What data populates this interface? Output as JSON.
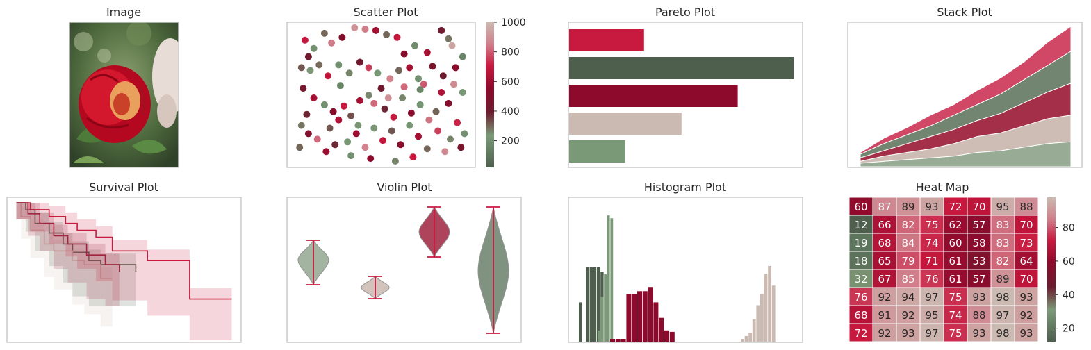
{
  "palette": {
    "dark_green": "#4e5f4e",
    "mid_green": "#6b7f6a",
    "sage": "#7a9a77",
    "sage_light": "#93a890",
    "crimson": "#c8193e",
    "wine": "#8e0a2c",
    "maroon": "#a0243f",
    "rose": "#cf3f5f",
    "pink": "#d07f8b",
    "taupe": "#cbbab1",
    "axes": "#cccccc"
  },
  "panels": {
    "image": {
      "title": "Image"
    },
    "scatter": {
      "title": "Scatter Plot"
    },
    "pareto": {
      "title": "Pareto Plot"
    },
    "stack": {
      "title": "Stack Plot"
    },
    "survival": {
      "title": "Survival Plot"
    },
    "violin": {
      "title": "Violin Plot"
    },
    "histogram": {
      "title": "Histogram Plot"
    },
    "heatmap": {
      "title": "Heat Map"
    }
  },
  "chart_data": [
    {
      "type": "scatter",
      "title": "Scatter Plot",
      "xlim": [
        0,
        100
      ],
      "ylim": [
        0,
        100
      ],
      "colorbar": {
        "ticks": [
          "200",
          "400",
          "600",
          "800",
          "1000"
        ],
        "range": [
          20,
          1000
        ]
      },
      "points": [
        [
          7,
          90,
          700
        ],
        [
          12,
          84,
          200
        ],
        [
          9,
          78,
          420
        ],
        [
          18,
          95,
          300
        ],
        [
          22,
          88,
          850
        ],
        [
          28,
          92,
          500
        ],
        [
          35,
          99,
          900
        ],
        [
          41,
          98,
          850
        ],
        [
          47,
          97,
          620
        ],
        [
          53,
          94,
          300
        ],
        [
          59,
          92,
          700
        ],
        [
          63,
          80,
          520
        ],
        [
          69,
          86,
          180
        ],
        [
          76,
          81,
          620
        ],
        [
          84,
          97,
          420
        ],
        [
          88,
          91,
          280
        ],
        [
          90,
          86,
          950
        ],
        [
          96,
          78,
          160
        ],
        [
          5,
          70,
          320
        ],
        [
          10,
          68,
          240
        ],
        [
          15,
          72,
          300
        ],
        [
          20,
          64,
          700
        ],
        [
          26,
          72,
          200
        ],
        [
          32,
          66,
          260
        ],
        [
          38,
          74,
          420
        ],
        [
          43,
          70,
          760
        ],
        [
          48,
          66,
          220
        ],
        [
          55,
          62,
          860
        ],
        [
          60,
          68,
          300
        ],
        [
          66,
          70,
          620
        ],
        [
          71,
          62,
          200
        ],
        [
          74,
          58,
          800
        ],
        [
          79,
          71,
          460
        ],
        [
          85,
          64,
          400
        ],
        [
          91,
          58,
          880
        ],
        [
          96,
          52,
          220
        ],
        [
          6,
          55,
          440
        ],
        [
          12,
          48,
          620
        ],
        [
          18,
          43,
          200
        ],
        [
          23,
          38,
          520
        ],
        [
          29,
          42,
          700
        ],
        [
          33,
          35,
          330
        ],
        [
          38,
          46,
          620
        ],
        [
          43,
          50,
          260
        ],
        [
          46,
          44,
          820
        ],
        [
          52,
          40,
          380
        ],
        [
          57,
          34,
          700
        ],
        [
          62,
          48,
          260
        ],
        [
          67,
          37,
          540
        ],
        [
          72,
          43,
          220
        ],
        [
          77,
          32,
          840
        ],
        [
          81,
          38,
          300
        ],
        [
          88,
          44,
          520
        ],
        [
          93,
          30,
          720
        ],
        [
          5,
          28,
          280
        ],
        [
          9,
          22,
          500
        ],
        [
          14,
          18,
          820
        ],
        [
          21,
          26,
          320
        ],
        [
          26,
          32,
          640
        ],
        [
          31,
          16,
          220
        ],
        [
          36,
          22,
          600
        ],
        [
          41,
          12,
          860
        ],
        [
          46,
          26,
          240
        ],
        [
          51,
          17,
          700
        ],
        [
          56,
          24,
          320
        ],
        [
          61,
          14,
          540
        ],
        [
          66,
          28,
          220
        ],
        [
          71,
          20,
          620
        ],
        [
          76,
          11,
          300
        ],
        [
          82,
          24,
          760
        ],
        [
          89,
          18,
          260
        ],
        [
          95,
          12,
          460
        ],
        [
          19,
          9,
          600
        ],
        [
          24,
          14,
          380
        ],
        [
          33,
          6,
          200
        ],
        [
          44,
          4,
          560
        ],
        [
          58,
          2,
          260
        ],
        [
          68,
          5,
          700
        ],
        [
          4,
          12,
          300
        ],
        [
          86,
          9,
          880
        ],
        [
          97,
          22,
          200
        ],
        [
          50,
          55,
          420
        ],
        [
          27,
          57,
          160
        ],
        [
          63,
          56,
          820
        ],
        [
          84,
          52,
          640
        ],
        [
          8,
          36,
          380
        ],
        [
          37,
          28,
          240
        ],
        [
          54,
          48,
          900
        ],
        [
          72,
          54,
          160
        ],
        [
          92,
          70,
          540
        ]
      ]
    },
    {
      "type": "bar",
      "title": "Pareto Plot",
      "orientation": "horizontal",
      "values": [
        32,
        96,
        72,
        48,
        24
      ],
      "xlim": [
        0,
        100
      ]
    },
    {
      "type": "area",
      "title": "Stack Plot",
      "x": [
        0,
        1,
        2,
        3,
        4,
        5,
        6,
        7,
        8,
        9
      ],
      "series": [
        {
          "values": [
            1,
            1.5,
            2,
            2.5,
            3,
            4,
            4.5,
            5.5,
            6.5,
            7
          ]
        },
        {
          "values": [
            0.5,
            1.5,
            2,
            2.5,
            3.5,
            4.5,
            5,
            6,
            7,
            7.5
          ]
        },
        {
          "values": [
            1,
            1.5,
            2.5,
            3.5,
            4,
            4.5,
            5.5,
            6.5,
            7.5,
            9
          ]
        },
        {
          "values": [
            1,
            2,
            2.5,
            3,
            4,
            4.5,
            5.5,
            6.5,
            7.5,
            9
          ]
        },
        {
          "values": [
            0.5,
            1.5,
            2,
            3,
            3,
            4,
            4.5,
            5,
            6.5,
            7
          ]
        }
      ]
    },
    {
      "type": "line",
      "title": "Survival Plot",
      "xlim": [
        0,
        100
      ],
      "ylim": [
        0,
        1
      ],
      "series": [
        {
          "values": [
            [
              4,
              1
            ],
            [
              8,
              0.95
            ],
            [
              12,
              0.85
            ],
            [
              18,
              0.78
            ],
            [
              24,
              0.7
            ],
            [
              28,
              0.64
            ],
            [
              35,
              0.58
            ],
            [
              40,
              0.55
            ],
            [
              55,
              0.5
            ]
          ],
          "band": [
            0.25,
            0.95
          ]
        },
        {
          "values": [
            [
              4,
              1
            ],
            [
              6,
              0.9
            ],
            [
              10,
              0.8
            ],
            [
              16,
              0.7
            ],
            [
              20,
              0.65
            ],
            [
              28,
              0.58
            ],
            [
              33,
              0.55
            ],
            [
              40,
              0.45
            ],
            [
              45,
              0.45
            ]
          ],
          "band": [
            0.1,
            0.9
          ]
        },
        {
          "values": [
            [
              4,
              1
            ],
            [
              10,
              0.95
            ],
            [
              18,
              0.9
            ],
            [
              25,
              0.85
            ],
            [
              30,
              0.8
            ],
            [
              38,
              0.75
            ],
            [
              45,
              0.65
            ],
            [
              60,
              0.58
            ],
            [
              78,
              0.58
            ],
            [
              78,
              0.3
            ],
            [
              96,
              0.3
            ]
          ],
          "band": [
            0,
            1
          ]
        },
        {
          "values": [
            [
              4,
              1
            ],
            [
              9,
              0.92
            ],
            [
              14,
              0.85
            ],
            [
              20,
              0.76
            ],
            [
              26,
              0.7
            ],
            [
              34,
              0.62
            ],
            [
              42,
              0.55
            ],
            [
              48,
              0.5
            ]
          ],
          "band": [
            0.25,
            0.9
          ]
        }
      ]
    },
    {
      "type": "violin",
      "title": "Violin Plot",
      "series": [
        {
          "min": 40,
          "max": 72,
          "center": 58,
          "width": 0.4
        },
        {
          "min": 30,
          "max": 46,
          "center": 38,
          "width": 0.35
        },
        {
          "min": 60,
          "max": 96,
          "center": 78,
          "width": 0.45
        },
        {
          "min": 5,
          "max": 96,
          "center": 50,
          "width": 0.4
        }
      ]
    },
    {
      "type": "bar",
      "title": "Histogram Plot",
      "series": [
        {
          "values": [
            28,
            0,
            53,
            53,
            53,
            53,
            50
          ]
        },
        {
          "values": [
            8,
            32,
            48,
            90,
            88
          ]
        },
        {
          "values": [
            2,
            2,
            2,
            34,
            34,
            36,
            36,
            39,
            28,
            17,
            8,
            7
          ]
        },
        {
          "values": [
            2,
            4,
            6,
            16,
            26,
            34,
            48,
            54,
            40
          ]
        }
      ],
      "ylim": [
        0,
        100
      ]
    },
    {
      "type": "heatmap",
      "title": "Heat Map",
      "colorbar": {
        "ticks": [
          "20",
          "40",
          "60",
          "80"
        ],
        "range": [
          12,
          98
        ]
      },
      "rows": [
        [
          60,
          87,
          89,
          93,
          72,
          70,
          95,
          88
        ],
        [
          12,
          66,
          82,
          75,
          62,
          57,
          83,
          70
        ],
        [
          19,
          68,
          84,
          74,
          60,
          58,
          83,
          73
        ],
        [
          18,
          65,
          79,
          71,
          61,
          53,
          82,
          64
        ],
        [
          32,
          67,
          85,
          76,
          61,
          57,
          89,
          70
        ],
        [
          76,
          92,
          94,
          97,
          75,
          93,
          98,
          93
        ],
        [
          68,
          91,
          92,
          95,
          74,
          88,
          97,
          92
        ],
        [
          72,
          92,
          93,
          97,
          75,
          93,
          98,
          93
        ]
      ]
    }
  ]
}
